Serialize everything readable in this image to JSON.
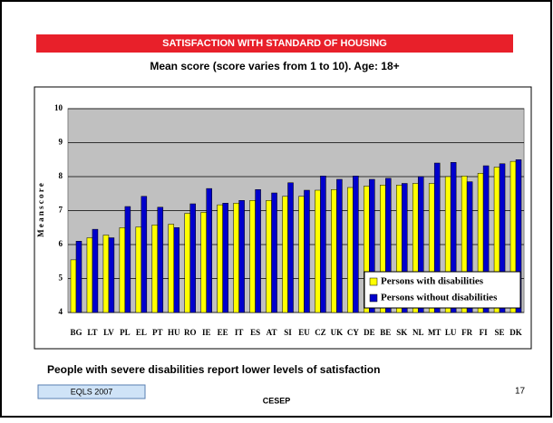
{
  "header": "SATISFACTION WITH STANDARD OF HOUSING",
  "subtitle": "Mean score (score varies from 1 to 10). Age: 18+",
  "note": "People with severe disabilities report lower levels of satisfaction",
  "footer": {
    "source": "EQLS 2007",
    "org": "CESEP",
    "page": "17"
  },
  "chart_data": {
    "type": "bar",
    "y_label": "M e a n  s c o r e",
    "categories": [
      "BG",
      "LT",
      "LV",
      "PL",
      "EL",
      "PT",
      "HU",
      "RO",
      "IE",
      "EE",
      "IT",
      "ES",
      "AT",
      "SI",
      "EU",
      "CZ",
      "UK",
      "CY",
      "DE",
      "BE",
      "SK",
      "NL",
      "MT",
      "LU",
      "FR",
      "FI",
      "SE",
      "DK"
    ],
    "series": [
      {
        "name": "Persons with disabilities",
        "color": "#ffff00",
        "values": [
          5.55,
          6.2,
          6.28,
          6.5,
          6.52,
          6.58,
          6.6,
          6.92,
          6.95,
          7.17,
          7.22,
          7.3,
          7.3,
          7.42,
          7.42,
          7.6,
          7.62,
          7.68,
          7.72,
          7.75,
          7.75,
          7.8,
          7.8,
          8.0,
          8.02,
          8.1,
          8.28,
          8.45
        ]
      },
      {
        "name": "Persons without disabilities",
        "color": "#0000cc",
        "values": [
          6.1,
          6.45,
          6.2,
          7.12,
          7.42,
          7.1,
          6.5,
          7.2,
          7.65,
          7.22,
          7.3,
          7.62,
          7.52,
          7.82,
          7.6,
          8.02,
          7.92,
          8.02,
          7.92,
          7.95,
          7.8,
          8.0,
          8.4,
          8.42,
          7.85,
          8.32,
          8.38,
          8.5
        ]
      }
    ],
    "ylim": [
      4,
      10
    ],
    "yticks": [
      4,
      5,
      6,
      7,
      8,
      9,
      10
    ],
    "grid": true,
    "legend": "lower-right"
  }
}
